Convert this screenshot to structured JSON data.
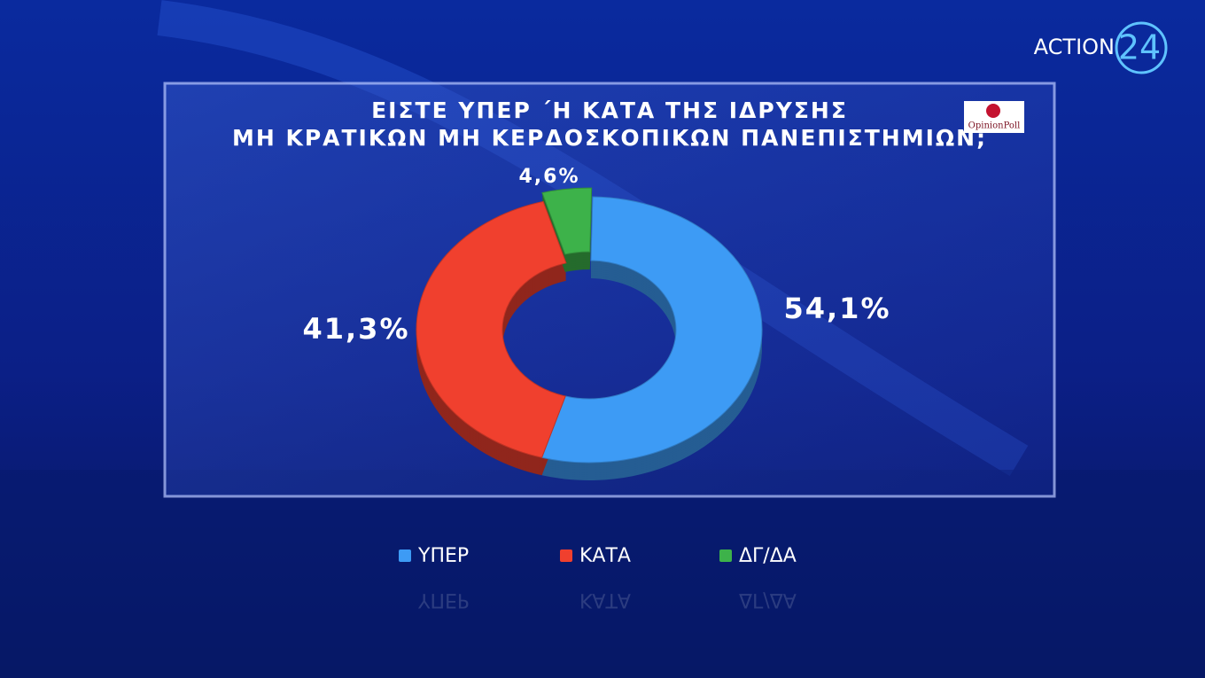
{
  "chart_data": {
    "type": "donut",
    "title": [
      "ΕΙΣΤΕ ΥΠΕΡ ΄Η ΚΑΤΑ ΤΗΣ ΙΔΡΥΣΗΣ",
      "ΜΗ ΚΡΑΤΙΚΩΝ ΜΗ ΚΕΡΔΟΣΚΟΠΙΚΩΝ ΠΑΝΕΠΙΣΤΗΜΙΩΝ;"
    ],
    "categories": [
      "ΥΠΕΡ",
      "ΚΑΤΑ",
      "ΔΓ/ΔΑ"
    ],
    "values": [
      54.1,
      41.3,
      4.6
    ],
    "value_labels": [
      "54,1%",
      "41,3%",
      "4,6%"
    ],
    "colors": [
      "#3d9bf5",
      "#f0402e",
      "#3db24a"
    ],
    "legend": "bottom"
  },
  "branding": {
    "channel": "ACTION",
    "channel_number": "24",
    "pollster": "OpinionPoll"
  }
}
